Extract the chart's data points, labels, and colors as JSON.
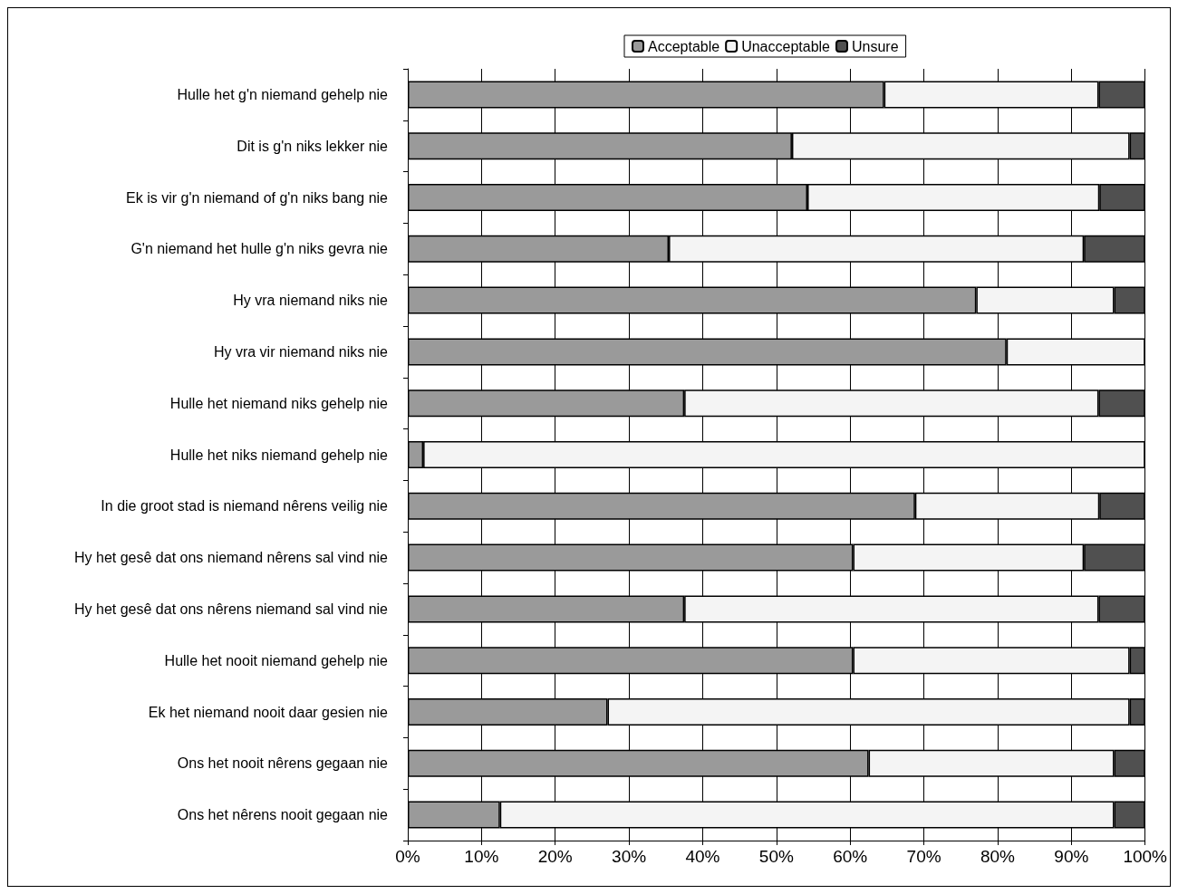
{
  "chart_data": {
    "type": "bar",
    "orientation": "horizontal",
    "stacked": true,
    "legend": "top",
    "grid": "x",
    "categories": [
      "Hulle het g'n niemand gehelp nie",
      "Dit is g'n niks lekker nie",
      "Ek is vir g'n niemand of g'n niks bang nie",
      "G'n niemand het hulle g'n niks gevra nie",
      "Hy vra niemand niks nie",
      "Hy vra vir niemand niks nie",
      "Hulle het niemand niks gehelp nie",
      "Hulle het niks niemand gehelp nie",
      "In die groot stad is niemand nêrens veilig nie",
      "Hy het gesê dat ons niemand nêrens sal vind nie",
      "Hy het gesê dat ons nêrens niemand sal vind nie",
      "Hulle het nooit niemand gehelp nie",
      "Ek het niemand nooit daar gesien nie",
      "Ons het nooit nêrens gegaan nie",
      "Ons het nêrens nooit gegaan nie"
    ],
    "series": [
      {
        "name": "Acceptable",
        "color": "#9a9a9a",
        "values": [
          64.6,
          52.1,
          54.2,
          35.4,
          77.1,
          81.2,
          37.5,
          2.1,
          68.8,
          60.4,
          37.5,
          60.4,
          27.1,
          62.5,
          12.5
        ]
      },
      {
        "name": "Unacceptable",
        "color": "#f4f4f4",
        "values": [
          29.1,
          45.8,
          39.6,
          56.3,
          18.7,
          18.8,
          56.2,
          97.9,
          25.0,
          31.3,
          56.2,
          37.5,
          70.8,
          33.3,
          83.3
        ]
      },
      {
        "name": "Unsure",
        "color": "#505050",
        "values": [
          6.3,
          2.1,
          6.2,
          8.3,
          4.2,
          null,
          6.3,
          null,
          6.2,
          8.3,
          6.3,
          2.1,
          2.1,
          4.2,
          4.2
        ]
      }
    ],
    "xlim": [
      0,
      100
    ],
    "xticks": [
      {
        "value": 0,
        "label": "0%"
      },
      {
        "value": 10,
        "label": "10%"
      },
      {
        "value": 20,
        "label": "20%"
      },
      {
        "value": 30,
        "label": "30%"
      },
      {
        "value": 40,
        "label": "40%"
      },
      {
        "value": 50,
        "label": "50%"
      },
      {
        "value": 60,
        "label": "60%"
      },
      {
        "value": 70,
        "label": "70%"
      },
      {
        "value": 80,
        "label": "80%"
      },
      {
        "value": 90,
        "label": "90%"
      },
      {
        "value": 100,
        "label": "100%"
      }
    ]
  }
}
